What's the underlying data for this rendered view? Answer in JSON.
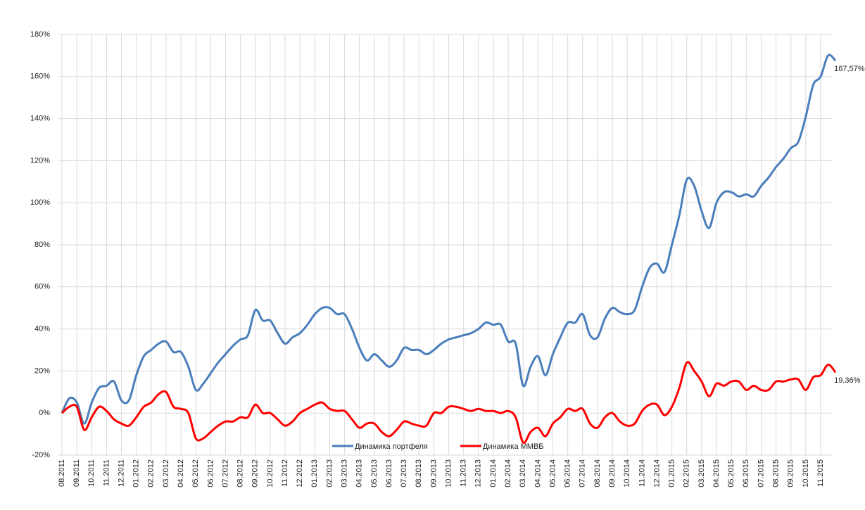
{
  "chart_data": {
    "type": "line",
    "categories": [
      "08.2011",
      null,
      "09.2011",
      null,
      "10.2011",
      null,
      "11.2011",
      null,
      "12.2011",
      null,
      "01.2012",
      null,
      "02.2012",
      null,
      "03.2012",
      null,
      "04.2012",
      null,
      "05.2012",
      null,
      "06.2012",
      null,
      "07.2012",
      null,
      "08.2012",
      null,
      "09.2012",
      null,
      "10.2012",
      null,
      "11.2012",
      null,
      "12.2012",
      null,
      "01.2013",
      null,
      "02.2013",
      null,
      "03.2013",
      null,
      "04.2013",
      null,
      "05.2013",
      null,
      "06.2013",
      null,
      "07.2013",
      null,
      "08.2013",
      null,
      "09.2013",
      null,
      "10.2013",
      null,
      "11.2013",
      null,
      "12.2013",
      null,
      "01.2014",
      null,
      "02.2014",
      null,
      "03.2014",
      null,
      "04.2014",
      null,
      "05.2014",
      null,
      "06.2014",
      null,
      "07.2014",
      null,
      "08.2014",
      null,
      "09.2014",
      null,
      "10.2014",
      null,
      "11.2014",
      null,
      "12.2014",
      null,
      "01.2015",
      null,
      "02.2015",
      null,
      "03.2015",
      null,
      "04.2015",
      null,
      "05.2015",
      null,
      "06.2015",
      null,
      "07.2015",
      null,
      "08.2015",
      null,
      "09.2015",
      null,
      "10.2015",
      null,
      "11.2015",
      null,
      null
    ],
    "series": [
      {
        "name": "Динамика портфеля",
        "color": "#4a7ebb",
        "values": [
          0,
          7,
          5,
          -5,
          5,
          12,
          13,
          15,
          6,
          6,
          18,
          27,
          30,
          33,
          34,
          29,
          29,
          22,
          11,
          14,
          19,
          24,
          28,
          32,
          35,
          37,
          49,
          44,
          44,
          38,
          33,
          36,
          38,
          42,
          47,
          50,
          50,
          47,
          47,
          40,
          31,
          25,
          28,
          25,
          22,
          25,
          31,
          30,
          30,
          28,
          30,
          33,
          35,
          36,
          37,
          38,
          40,
          43,
          42,
          42,
          34,
          33,
          13,
          22,
          27,
          18,
          28,
          36,
          43,
          43,
          47,
          37,
          36,
          45,
          50,
          48,
          47,
          49,
          60,
          69,
          71,
          67,
          80,
          94,
          111,
          108,
          96,
          88,
          100,
          105,
          105,
          103,
          104,
          103,
          108,
          112,
          117,
          121,
          126,
          129,
          141,
          156,
          160,
          170,
          167.57
        ],
        "value_labels": {
          "104": "167,57%"
        }
      },
      {
        "name": "Динамика ММВБ",
        "color": "#ff0000",
        "values": [
          0,
          3,
          3,
          -8,
          -2,
          3,
          1,
          -3,
          -5,
          -6,
          -2,
          3,
          5,
          9,
          10,
          3,
          2,
          0,
          -12,
          -12,
          -9,
          -6,
          -4,
          -4,
          -2,
          -2,
          4,
          0,
          0,
          -3,
          -6,
          -4,
          0,
          2,
          4,
          5,
          2,
          1,
          1,
          -3,
          -7,
          -5,
          -5,
          -9,
          -11,
          -8,
          -4,
          -5,
          -6,
          -6,
          0,
          0,
          3,
          3,
          2,
          1,
          2,
          1,
          1,
          0,
          1,
          -2,
          -14,
          -9,
          -7,
          -11,
          -5,
          -2,
          2,
          1,
          2,
          -5,
          -7,
          -2,
          0,
          -4,
          -6,
          -5,
          1,
          4,
          4,
          -1,
          3,
          12,
          24,
          20,
          15,
          8,
          14,
          13,
          15,
          15,
          11,
          13,
          11,
          11,
          15,
          15,
          16,
          16,
          11,
          17,
          18,
          23,
          19.36
        ],
        "value_labels": {
          "104": "19,36%"
        }
      }
    ],
    "ylim": [
      -20,
      180
    ],
    "yticks": [
      {
        "value": -20,
        "label": "-20%"
      },
      {
        "value": 0,
        "label": "0%"
      },
      {
        "value": 20,
        "label": "20%"
      },
      {
        "value": 40,
        "label": "40%"
      },
      {
        "value": 60,
        "label": "60%"
      },
      {
        "value": 80,
        "label": "80%"
      },
      {
        "value": 100,
        "label": "100%"
      },
      {
        "value": 120,
        "label": "120%"
      },
      {
        "value": 140,
        "label": "140%"
      },
      {
        "value": 160,
        "label": "160%"
      },
      {
        "value": 180,
        "label": "180%"
      }
    ],
    "grid": true,
    "legend": "bottom"
  }
}
